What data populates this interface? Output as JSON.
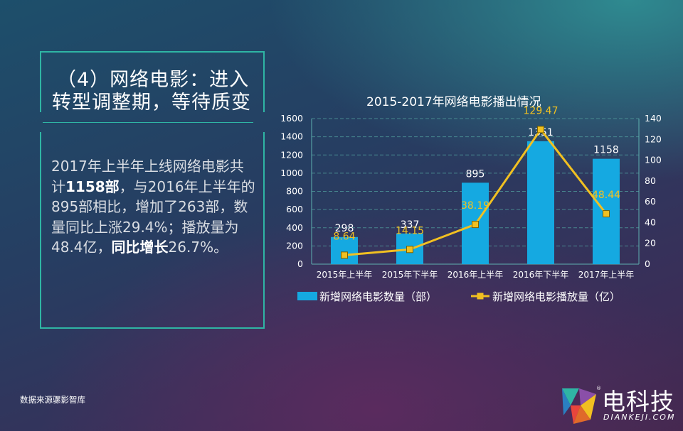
{
  "heading": {
    "line1": "（4）网络电影：进入",
    "line2": "转型调整期，等待质变"
  },
  "body": {
    "t1": "2017年上半年上线网络电影共计",
    "t2": "1158部",
    "t3": "，与2016年上半年的895部相比，增加了263部，数量同比上涨29.4%；播放量为48.4亿，",
    "t4": "同比增长",
    "t5": "26.7%。"
  },
  "source": "数据来源骡影智库",
  "logo": {
    "cn": "电科技",
    "en": "DIANKEJI.COM",
    "reg": "®"
  },
  "chart_data": {
    "type": "bar",
    "title": "2015-2017年网络电影播出情况",
    "categories": [
      "2015年上半年",
      "2015年下半年",
      "2016年上半年",
      "2016年下半年",
      "2017年上半年"
    ],
    "series": [
      {
        "name": "新增网络电影数量（部）",
        "type": "bar",
        "axis": "left",
        "values": [
          298,
          337,
          895,
          1351,
          1158
        ],
        "color": "#15a9e1"
      },
      {
        "name": "新增网络电影播放量（亿）",
        "type": "line",
        "axis": "right",
        "values": [
          8.64,
          14.15,
          38.19,
          129.47,
          48.44
        ],
        "color": "#f1c021"
      }
    ],
    "ylim_left": [
      0,
      1600
    ],
    "yticks_left": [
      0,
      200,
      400,
      600,
      800,
      1000,
      1200,
      1400,
      1600
    ],
    "ylim_right": [
      0,
      140
    ],
    "yticks_right": [
      0,
      20,
      40,
      60,
      80,
      100,
      120,
      140
    ],
    "grid": true,
    "legend": "bottom"
  }
}
